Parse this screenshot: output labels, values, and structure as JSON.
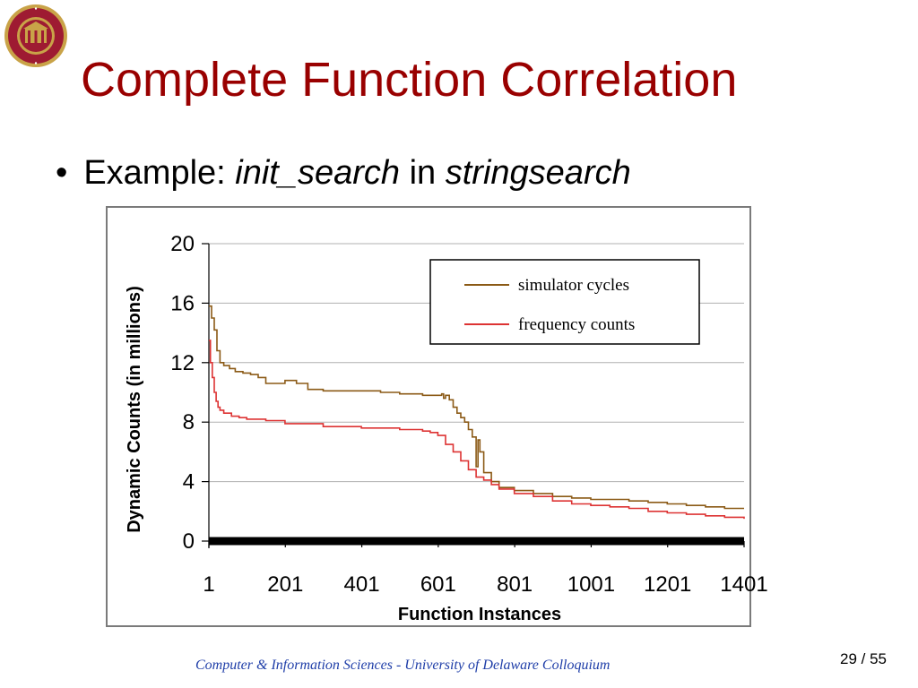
{
  "slide": {
    "title": "Complete Function Correlation",
    "bullet": {
      "prefix": "Example: ",
      "function_name": "init_search",
      "connector": " in ",
      "program_name": "stringsearch"
    },
    "footer": "Computer & Information Sciences - University of Delaware Colloquium",
    "page": {
      "current": "29",
      "separator": " / ",
      "total": "55"
    }
  },
  "colors": {
    "title": "#990000",
    "footer": "#1f3ea8",
    "simulator_series": "#8b5a16",
    "frequency_series": "#dd3333",
    "seal_red": "#9e1b32",
    "seal_gold": "#c9a348"
  },
  "chart_data": {
    "type": "line",
    "xlabel": "Function Instances",
    "ylabel": "Dynamic Counts (in millions)",
    "xlim": [
      1,
      1401
    ],
    "ylim": [
      0,
      20
    ],
    "x_ticks": [
      1,
      201,
      401,
      601,
      801,
      1001,
      1201,
      1401
    ],
    "y_ticks": [
      0,
      4,
      8,
      12,
      16,
      20
    ],
    "grid": "horizontal",
    "legend_position": "top-right",
    "series": [
      {
        "name": "simulator cycles",
        "color": "#8b5a16",
        "x": [
          1,
          8,
          15,
          22,
          30,
          40,
          55,
          70,
          90,
          110,
          130,
          150,
          170,
          200,
          230,
          260,
          300,
          350,
          400,
          450,
          500,
          560,
          600,
          610,
          615,
          620,
          630,
          640,
          650,
          660,
          670,
          680,
          690,
          700,
          705,
          710,
          720,
          740,
          760,
          800,
          850,
          900,
          950,
          1000,
          1050,
          1100,
          1150,
          1200,
          1250,
          1300,
          1350,
          1401
        ],
        "values": [
          15.8,
          15.0,
          14.2,
          12.8,
          12.0,
          11.8,
          11.6,
          11.4,
          11.3,
          11.2,
          11.0,
          10.6,
          10.6,
          10.8,
          10.6,
          10.2,
          10.1,
          10.1,
          10.1,
          10.0,
          9.9,
          9.8,
          9.8,
          9.9,
          9.6,
          9.8,
          9.5,
          9.0,
          8.6,
          8.3,
          8.0,
          7.5,
          7.0,
          5.0,
          6.8,
          6.0,
          4.6,
          4.0,
          3.6,
          3.4,
          3.2,
          3.0,
          2.9,
          2.8,
          2.8,
          2.7,
          2.6,
          2.5,
          2.4,
          2.3,
          2.2,
          2.2
        ]
      },
      {
        "name": "frequency counts",
        "color": "#dd3333",
        "x": [
          1,
          5,
          10,
          15,
          20,
          25,
          30,
          40,
          60,
          80,
          100,
          150,
          200,
          300,
          400,
          500,
          560,
          580,
          600,
          620,
          640,
          660,
          680,
          700,
          720,
          740,
          760,
          800,
          850,
          900,
          950,
          1000,
          1050,
          1100,
          1150,
          1200,
          1250,
          1300,
          1350,
          1401
        ],
        "values": [
          13.5,
          12.0,
          11.0,
          10.0,
          9.4,
          9.0,
          8.8,
          8.6,
          8.4,
          8.3,
          8.2,
          8.1,
          7.9,
          7.7,
          7.6,
          7.5,
          7.4,
          7.3,
          7.1,
          6.5,
          6.0,
          5.4,
          4.8,
          4.3,
          4.1,
          3.8,
          3.5,
          3.2,
          3.0,
          2.7,
          2.5,
          2.4,
          2.3,
          2.2,
          2.0,
          1.9,
          1.8,
          1.7,
          1.6,
          1.5
        ]
      }
    ],
    "baseline": {
      "y": 0,
      "color": "#000000"
    }
  }
}
